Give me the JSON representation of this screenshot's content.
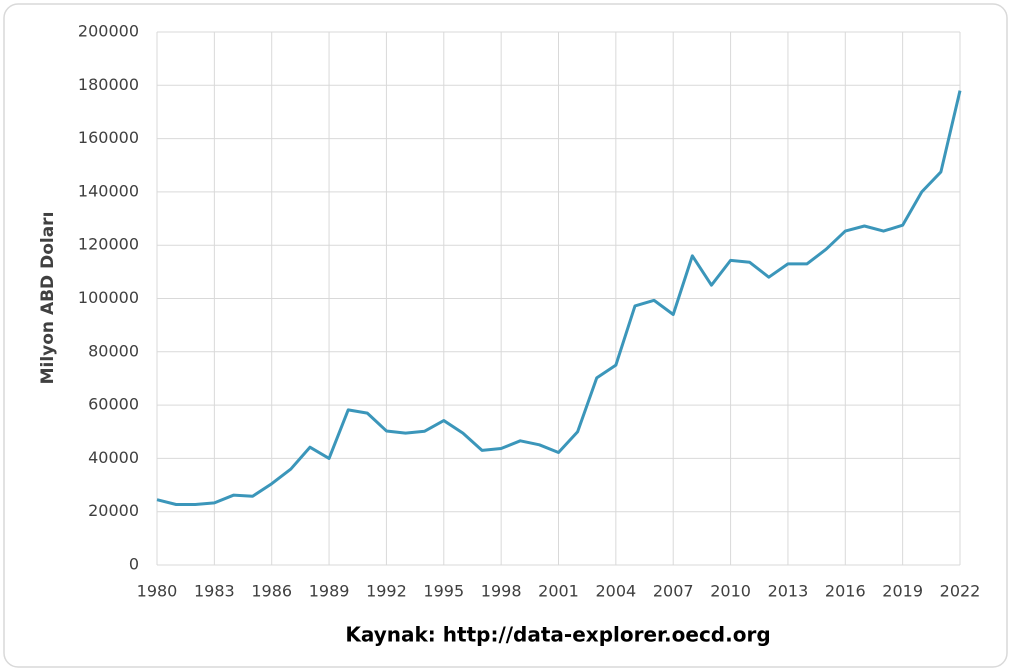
{
  "chart_data": {
    "type": "line",
    "y_label": "Milyon ABD Doları",
    "x_label": "Kaynak: http://data-explorer.oecd.org",
    "x": [
      1980,
      1981,
      1982,
      1983,
      1984,
      1985,
      1986,
      1987,
      1988,
      1989,
      1990,
      1991,
      1992,
      1993,
      1994,
      1995,
      1996,
      1997,
      1998,
      1999,
      2000,
      2001,
      2002,
      2003,
      2004,
      2005,
      2006,
      2007,
      2008,
      2009,
      2010,
      2011,
      2012,
      2013,
      2014,
      2015,
      2016,
      2017,
      2018,
      2019,
      2020,
      2021,
      2022
    ],
    "values": [
      24500,
      22700,
      22700,
      23300,
      26200,
      25800,
      30500,
      36000,
      44200,
      40000,
      58200,
      57000,
      50300,
      49500,
      50200,
      54200,
      49500,
      43000,
      43700,
      46600,
      45100,
      42200,
      50000,
      70200,
      75000,
      97200,
      99300,
      94000,
      116000,
      105000,
      114300,
      113600,
      108000,
      113000,
      113000,
      118500,
      125300,
      127200,
      125300,
      127500,
      140000,
      147500,
      178000
    ],
    "color": "#3b96ba",
    "xlim": [
      1980,
      2022
    ],
    "xticks": [
      1980,
      1983,
      1986,
      1989,
      1992,
      1995,
      1998,
      2001,
      2004,
      2007,
      2010,
      2013,
      2016,
      2019,
      2022
    ],
    "ylim": [
      0,
      200000
    ],
    "yticks": [
      0,
      20000,
      40000,
      60000,
      80000,
      100000,
      120000,
      140000,
      160000,
      180000,
      200000
    ],
    "grid": true
  }
}
